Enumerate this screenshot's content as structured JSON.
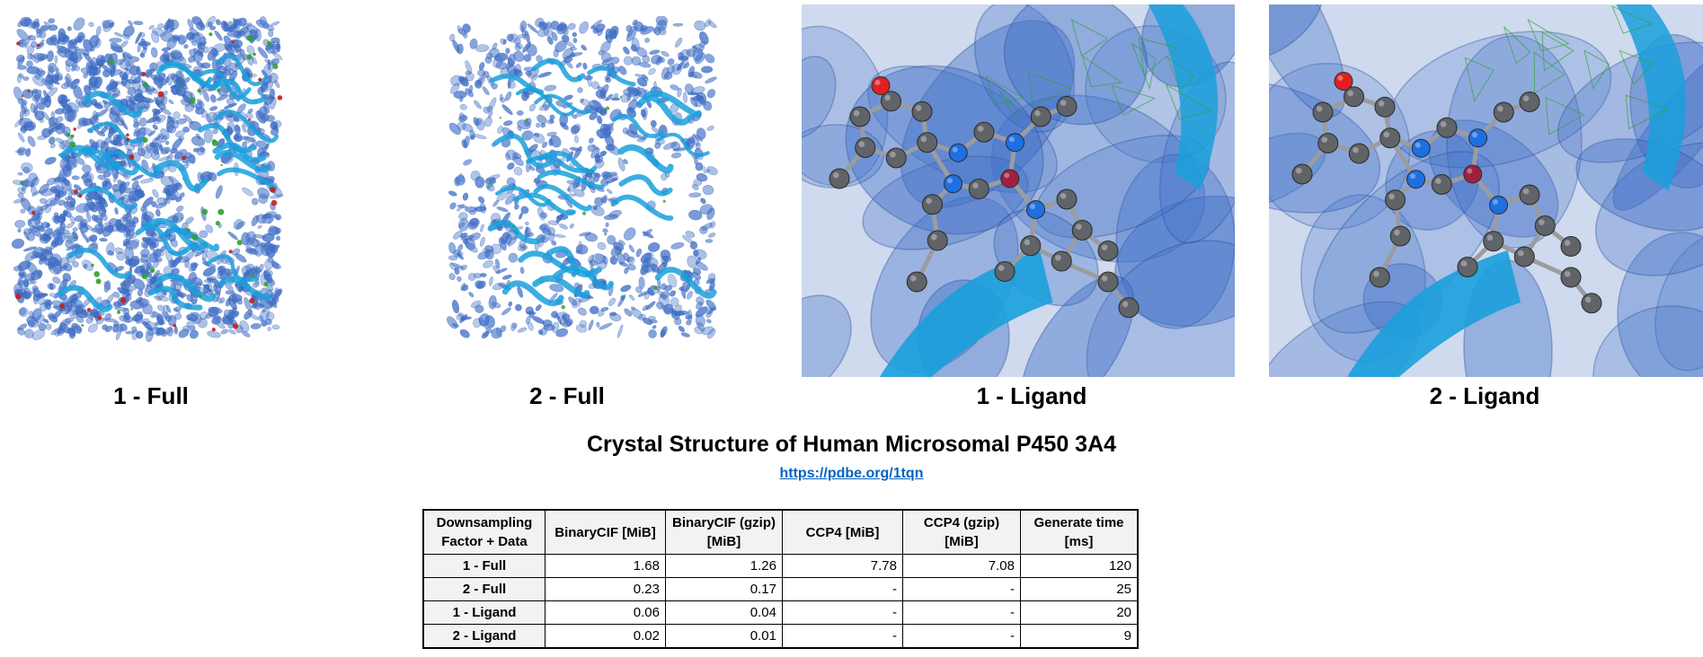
{
  "panels": [
    {
      "caption": "1 - Full",
      "kind": "full",
      "has_difference_map": true
    },
    {
      "caption": "2 - Full",
      "kind": "full",
      "has_difference_map": false
    },
    {
      "caption": "1 - Ligand",
      "kind": "ligand"
    },
    {
      "caption": "2 - Ligand",
      "kind": "ligand"
    }
  ],
  "title": "Crystal Structure of Human Microsomal P450 3A4",
  "link": "https://pdbe.org/1tqn",
  "colors": {
    "density": "#3f6fc8",
    "cartoon": "#1aa0dc",
    "atom_carbon": "#606368",
    "atom_nitrogen": "#1e6fe0",
    "atom_oxygen": "#e02020",
    "atom_iron": "#a02040",
    "positive_difference": "#2fa02f",
    "negative_difference": "#c02020"
  },
  "table": {
    "headers": [
      "Downsampling Factor + Data",
      "BinaryCIF [MiB]",
      "BinaryCIF (gzip) [MiB]",
      "CCP4 [MiB]",
      "CCP4 (gzip) [MiB]",
      "Generate time [ms]"
    ],
    "rows": [
      {
        "label": "1 - Full",
        "bcif": "1.68",
        "bcif_gzip": "1.26",
        "ccp4": "7.78",
        "ccp4_gzip": "7.08",
        "time": "120"
      },
      {
        "label": "2 - Full",
        "bcif": "0.23",
        "bcif_gzip": "0.17",
        "ccp4": "-",
        "ccp4_gzip": "-",
        "time": "25"
      },
      {
        "label": "1 - Ligand",
        "bcif": "0.06",
        "bcif_gzip": "0.04",
        "ccp4": "-",
        "ccp4_gzip": "-",
        "time": "20"
      },
      {
        "label": "2 - Ligand",
        "bcif": "0.02",
        "bcif_gzip": "0.01",
        "ccp4": "-",
        "ccp4_gzip": "-",
        "time": "9"
      }
    ]
  }
}
